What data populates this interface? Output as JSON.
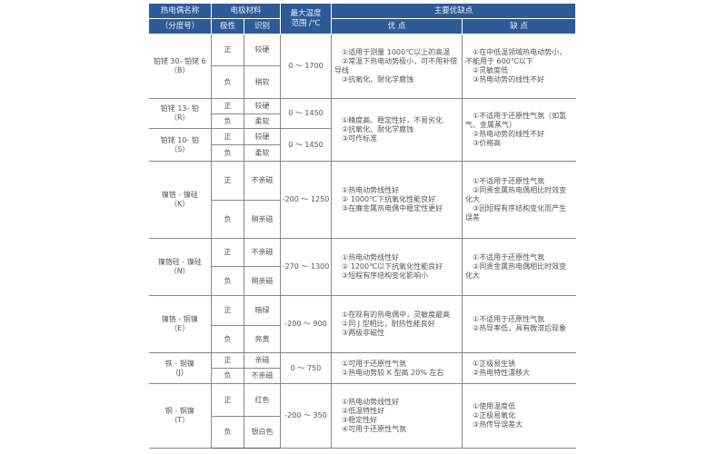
{
  "header": {
    "name": "热电偶名称",
    "name_sub": "（分度号）",
    "material": "电极材料",
    "polarity": "极性",
    "identify": "识别",
    "temp": "最大温度",
    "temp_sub": "范围 /℃",
    "main": "主要优缺点",
    "pros": "优 点",
    "cons": "缺 点"
  },
  "colors": {
    "header_bg": "#2e5b98",
    "text": "#555555"
  },
  "rows": [
    {
      "name": "铂铑 30- 铂铑 6",
      "code": "（B）",
      "pos": [
        "正",
        "较硬"
      ],
      "neg": [
        "负",
        "稍软"
      ],
      "temp": "0 ～ 1700",
      "pros": [
        "①适用于测量 1000℃以上的高温",
        "②常温下热电动势极小，可不用补偿导线",
        "③抗氧化、耐化学腐蚀"
      ],
      "cons": [
        "①在中低温领域热电动势小，不能用于 600℃以下",
        "②灵敏度低",
        "③热电动势的线性不好"
      ]
    },
    {
      "name": "铂铑 13- 铂",
      "code": "（R）",
      "pos": [
        "正",
        "较硬"
      ],
      "neg": [
        "负",
        "柔软"
      ],
      "temp": "0 ～ 1450",
      "pros": [
        "①精度高、稳定性好，不易劣化",
        "②抗氧化、耐化学腐蚀",
        "③可作标准"
      ],
      "cons": [
        "①不适用于还原性气氛（如氢气、金属蒸气）",
        "②热电动势的线性不好",
        "③价格高"
      ]
    },
    {
      "name": "铂铑 10- 铂",
      "code": "（S）",
      "pos": [
        "正",
        "较硬"
      ],
      "neg": [
        "负",
        "柔软"
      ],
      "temp": "0 ～ 1450"
    },
    {
      "name": "镍铬 - 镍硅",
      "code": "（K）",
      "pos": [
        "正",
        "不亲磁"
      ],
      "neg": [
        "负",
        "稍亲磁"
      ],
      "temp": "-200 ～ 1250",
      "pros": [
        "①热电动势线性好",
        "② 1000℃下抗氧化性能良好",
        "③在廉金属热电偶中稳定性更好"
      ],
      "cons": [
        "①不适用于还原性气氛",
        "②同贵金属热电偶相比时效变化大",
        "③因短程有序结构变化而产生误差"
      ]
    },
    {
      "name": "镍铬硅 - 镍硅",
      "code": "（N）",
      "pos": [
        "正",
        "不亲磁"
      ],
      "neg": [
        "负",
        "稍亲磁"
      ],
      "temp": "-270 ～ 1300",
      "pros": [
        "①热电动势线性好",
        "② 1200℃以下抗氧化性能良好",
        "③短程有序结构变化影响小"
      ],
      "cons": [
        "①不适用于还原性气氛",
        "②同贵金属热电偶相比时效变化大"
      ]
    },
    {
      "name": "镍铬 - 铜镍",
      "code": "（E）",
      "pos": [
        "正",
        "暗绿"
      ],
      "neg": [
        "负",
        "亮黄"
      ],
      "temp": "-200 ～ 900",
      "pros": [
        "①在现有的热电偶中，灵敏度最高",
        "②同 J 型相比，耐热性能良好",
        "③两极非磁性"
      ],
      "cons": [
        "①不适用于还原性气氛",
        "②热导率低，具有微滞后现象"
      ]
    },
    {
      "name": "铁 - 铜镍",
      "code": "（J）",
      "pos": [
        "正",
        "亲磁"
      ],
      "neg": [
        "负",
        "不亲磁"
      ],
      "temp": "0 ～ 750",
      "pros": [
        "①可用于还原性气氛",
        "②热电动势较 K 型高 20% 左右"
      ],
      "cons": [
        "①正极易生锈",
        "②热电特性漂移大"
      ]
    },
    {
      "name": "铜 - 铜镍",
      "code": "（T）",
      "pos": [
        "正",
        "红色"
      ],
      "neg": [
        "负",
        "银白色"
      ],
      "temp": "-200 ～ 350",
      "pros": [
        "①热电动势线性好",
        "②低温特性好",
        "③稳定性好",
        "④可用于还原性气氛"
      ],
      "cons": [
        "①使用温度低",
        "②正极易氧化",
        "③热传导误差大"
      ]
    }
  ]
}
